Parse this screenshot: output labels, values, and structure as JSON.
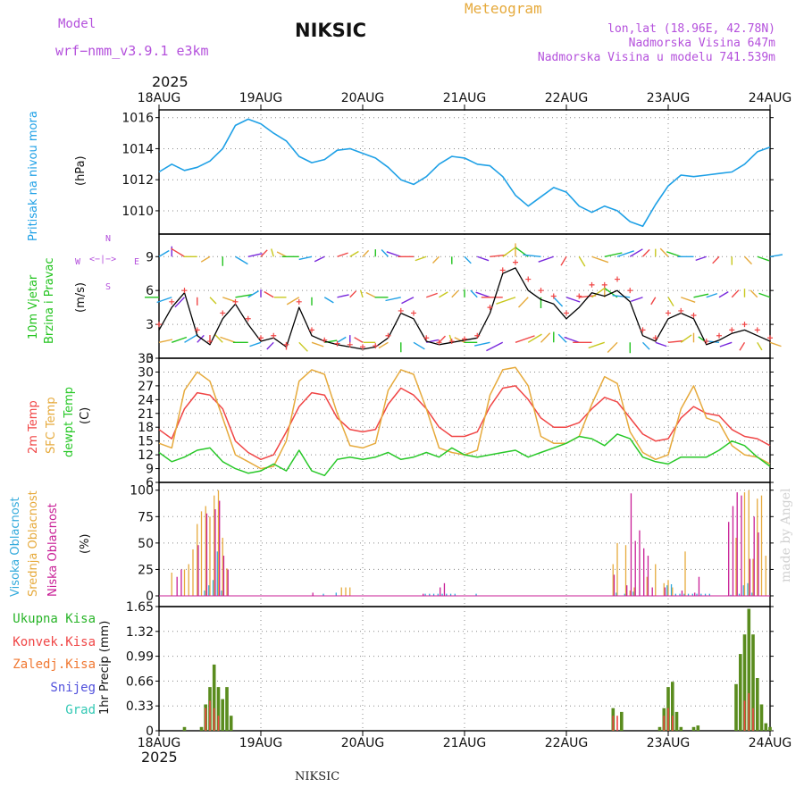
{
  "header": {
    "model_label": "Model",
    "model_name": "wrf−nmm_v3.9.1  e3km",
    "station": "NIKSIC",
    "meteogram": "Meteogram",
    "lonlat": "lon,lat (18.96E, 42.78N)",
    "elevation": "Nadmorska Visina 647m",
    "model_elevation": "Nadmorska Visina u modelu 741.539m",
    "year_top": "2025",
    "year_bottom": "2025",
    "footer_station": "NIKSIC",
    "credit": "made by Angel"
  },
  "colors": {
    "pressure": "#1ea0e6",
    "wind": "#22c31e",
    "temp2m": "#f04646",
    "sfc": "#e6aa3c",
    "dew": "#28c828",
    "cloud_high": "#32aadc",
    "cloud_mid": "#e6aa3c",
    "cloud_low": "#c81e96",
    "precip_total": "#5a8c1e",
    "precip_conv": "#f04646",
    "purple_text": "#b450dc",
    "title_orange": "#e6aa3c"
  },
  "chart_data": [
    {
      "type": "line",
      "name": "pressure",
      "title": "Pritisak na nivou mora",
      "ylabel": "(hPa)",
      "x_categories": [
        "18AUG",
        "19AUG",
        "20AUG",
        "21AUG",
        "22AUG",
        "23AUG",
        "24AUG"
      ],
      "ylim": [
        1008.5,
        1016.5
      ],
      "yticks": [
        1010,
        1012,
        1014,
        1016
      ],
      "x": [
        0,
        3,
        6,
        9,
        12,
        15,
        18,
        21,
        24,
        27,
        30,
        33,
        36,
        39,
        42,
        45,
        48,
        51,
        54,
        57,
        60,
        63,
        66,
        69,
        72,
        75,
        78,
        81,
        84,
        87,
        90,
        93,
        96,
        99,
        102,
        105,
        108,
        111,
        114,
        117,
        120,
        123,
        126,
        129,
        132,
        135,
        138,
        141,
        144
      ],
      "values": [
        1012.5,
        1013.0,
        1012.6,
        1012.8,
        1013.2,
        1014.0,
        1015.5,
        1015.9,
        1015.6,
        1015.0,
        1014.5,
        1013.5,
        1013.1,
        1013.3,
        1013.9,
        1014.0,
        1013.7,
        1013.4,
        1012.8,
        1012.0,
        1011.7,
        1012.2,
        1013.0,
        1013.5,
        1013.4,
        1013.0,
        1012.9,
        1012.2,
        1011.0,
        1010.3,
        1010.9,
        1011.5,
        1011.2,
        1010.3,
        1009.9,
        1010.3,
        1010.0,
        1009.3,
        1009.0,
        1010.4,
        1011.6,
        1012.3,
        1012.2,
        1012.3,
        1012.4,
        1012.5,
        1013.0,
        1013.8,
        1014.1
      ]
    },
    {
      "type": "line",
      "name": "wind",
      "title": "10m Vjetar Brzina i Pravac",
      "ylabel": "(m/s)",
      "ylim": [
        0,
        11
      ],
      "yticks": [
        0,
        3,
        6,
        9
      ],
      "compass": {
        "north": "N",
        "west": "W",
        "east": "E",
        "south": "S"
      },
      "x": [
        0,
        3,
        6,
        9,
        12,
        15,
        18,
        21,
        24,
        27,
        30,
        33,
        36,
        39,
        42,
        45,
        48,
        51,
        54,
        57,
        60,
        63,
        66,
        69,
        72,
        75,
        78,
        81,
        84,
        87,
        90,
        93,
        96,
        99,
        102,
        105,
        108,
        111,
        114,
        117,
        120,
        123,
        126,
        129,
        132,
        135,
        138,
        141,
        144
      ],
      "speed": [
        2.5,
        4.5,
        5.8,
        2.0,
        1.2,
        3.5,
        4.8,
        3.0,
        1.5,
        1.8,
        1.0,
        4.5,
        2.0,
        1.5,
        1.2,
        1.0,
        0.8,
        1.0,
        1.8,
        4.0,
        3.5,
        1.5,
        1.2,
        1.4,
        1.6,
        1.8,
        4.0,
        7.5,
        8.0,
        6.0,
        5.2,
        4.8,
        3.5,
        4.5,
        5.8,
        5.5,
        6.0,
        5.0,
        2.0,
        1.5,
        3.5,
        4.0,
        3.5,
        1.2,
        1.6,
        2.2,
        2.5,
        2.0,
        1.5
      ],
      "gust": [
        3.0,
        5.0,
        6.0,
        2.5,
        1.5,
        4.0,
        5.0,
        3.5,
        1.8,
        2.0,
        1.2,
        5.0,
        2.5,
        1.6,
        1.3,
        1.2,
        1.0,
        1.1,
        2.0,
        4.2,
        4.0,
        1.8,
        1.4,
        1.5,
        1.7,
        2.0,
        4.5,
        7.8,
        8.5,
        7.0,
        6.0,
        5.5,
        4.0,
        5.5,
        6.5,
        6.5,
        7.0,
        6.0,
        2.5,
        1.8,
        4.0,
        4.2,
        3.8,
        1.5,
        2.0,
        2.5,
        3.0,
        2.5,
        1.8
      ],
      "direction_deg": [
        20,
        30,
        45,
        60,
        90,
        120,
        150,
        180,
        210,
        240,
        270,
        300,
        330,
        15,
        45,
        90,
        135,
        180,
        225,
        270,
        315,
        20,
        60,
        100,
        140,
        180,
        200,
        220,
        30,
        45,
        60,
        90,
        120,
        150,
        180,
        210,
        240,
        270,
        300,
        330,
        10,
        50,
        90,
        130,
        170,
        210,
        250,
        290,
        330
      ]
    },
    {
      "type": "line",
      "name": "temperature",
      "title_lines": [
        "2m Temp",
        "SFC Temp",
        "dewpt Temp"
      ],
      "ylabel": "(C)",
      "ylim": [
        6,
        33
      ],
      "yticks": [
        6,
        9,
        12,
        15,
        18,
        21,
        24,
        27,
        30,
        33
      ],
      "x": [
        0,
        3,
        6,
        9,
        12,
        15,
        18,
        21,
        24,
        27,
        30,
        33,
        36,
        39,
        42,
        45,
        48,
        51,
        54,
        57,
        60,
        63,
        66,
        69,
        72,
        75,
        78,
        81,
        84,
        87,
        90,
        93,
        96,
        99,
        102,
        105,
        108,
        111,
        114,
        117,
        120,
        123,
        126,
        129,
        132,
        135,
        138,
        141,
        144
      ],
      "series": [
        {
          "name": "2m Temp",
          "values": [
            17.5,
            15.5,
            22.0,
            25.5,
            25.0,
            22.0,
            15.0,
            12.5,
            11.0,
            12.0,
            17.0,
            22.5,
            25.5,
            25.0,
            20.0,
            17.5,
            17.0,
            17.5,
            23.0,
            26.5,
            25.0,
            22.0,
            18.0,
            16.0,
            16.0,
            17.0,
            22.5,
            26.5,
            27.0,
            24.0,
            20.0,
            18.0,
            18.0,
            19.0,
            22.0,
            24.5,
            23.5,
            20.0,
            16.5,
            15.0,
            15.5,
            20.0,
            22.5,
            21.0,
            20.5,
            17.5,
            16.0,
            15.5,
            14.0
          ]
        },
        {
          "name": "SFC Temp",
          "values": [
            14.5,
            13.5,
            26.0,
            30.0,
            28.0,
            20.0,
            12.0,
            10.5,
            9.0,
            9.5,
            15.0,
            28.0,
            30.5,
            29.5,
            21.0,
            14.0,
            13.5,
            14.5,
            26.0,
            30.5,
            29.5,
            22.0,
            13.5,
            12.5,
            12.0,
            13.0,
            25.0,
            30.5,
            31.0,
            27.0,
            16.0,
            14.5,
            14.5,
            16.0,
            23.0,
            29.0,
            27.5,
            17.0,
            12.5,
            11.0,
            12.0,
            22.0,
            27.0,
            20.0,
            19.0,
            14.0,
            12.0,
            11.5,
            10.0
          ]
        },
        {
          "name": "dewpt Temp",
          "values": [
            12.5,
            10.5,
            11.5,
            13.0,
            13.5,
            10.5,
            9.0,
            8.0,
            8.5,
            10.0,
            8.5,
            13.0,
            8.5,
            7.5,
            11.0,
            11.5,
            11.0,
            11.5,
            12.5,
            11.0,
            11.5,
            12.5,
            11.5,
            13.5,
            12.0,
            11.5,
            12.0,
            12.5,
            13.0,
            11.5,
            12.5,
            13.5,
            14.5,
            16.0,
            15.5,
            14.0,
            16.5,
            15.5,
            11.5,
            10.5,
            10.0,
            11.5,
            11.5,
            11.5,
            13.0,
            15.0,
            14.0,
            11.5,
            9.5
          ]
        }
      ]
    },
    {
      "type": "bar",
      "name": "clouds",
      "title_lines": [
        "Visoka Oblacnost",
        "Srednja Oblacnost",
        "Niska Oblacnost"
      ],
      "ylabel": "(%)",
      "ylim": [
        0,
        100
      ],
      "yticks": [
        0,
        25,
        50,
        75,
        100
      ],
      "series": [
        {
          "name": "Visoka Oblacnost",
          "x": [
            11,
            12,
            13,
            14,
            15,
            39,
            42,
            63,
            64,
            65,
            66,
            67,
            68,
            69,
            70,
            75,
            108,
            110,
            112,
            120,
            121,
            122,
            123,
            124,
            125,
            126,
            127,
            128,
            129,
            130,
            135,
            137,
            138,
            139,
            140
          ],
          "values": [
            5,
            10,
            15,
            42,
            5,
            2,
            3,
            2,
            2,
            2,
            2,
            2,
            2,
            2,
            2,
            2,
            3,
            2,
            4,
            10,
            11,
            2,
            2,
            2,
            2,
            2,
            2,
            2,
            2,
            2,
            1,
            2,
            10,
            12,
            3
          ]
        },
        {
          "name": "Srednja Oblacnost",
          "x": [
            3,
            6,
            7,
            8,
            9,
            10,
            11,
            12,
            13,
            14,
            15,
            16,
            43,
            44,
            45,
            107,
            108,
            110,
            111,
            112,
            115,
            117,
            119,
            120,
            121,
            124,
            136,
            138,
            139,
            140,
            141,
            142,
            143
          ],
          "values": [
            22,
            25,
            30,
            44,
            68,
            80,
            85,
            75,
            95,
            100,
            55,
            26,
            8,
            8,
            8,
            30,
            50,
            48,
            5,
            8,
            18,
            30,
            12,
            15,
            8,
            42,
            55,
            98,
            100,
            35,
            92,
            95,
            38
          ]
        },
        {
          "name": "Niska Oblacnost",
          "x": [
            4,
            5,
            9,
            11,
            13,
            14,
            15,
            16,
            36,
            62,
            66,
            67,
            107,
            110,
            111,
            112,
            113,
            114,
            115,
            116,
            119,
            123,
            126,
            127,
            134,
            135,
            136,
            137,
            139,
            140,
            141
          ],
          "values": [
            18,
            25,
            48,
            78,
            82,
            90,
            38,
            25,
            3,
            2,
            8,
            12,
            20,
            10,
            97,
            52,
            62,
            45,
            38,
            8,
            8,
            5,
            3,
            18,
            70,
            85,
            98,
            95,
            35,
            75,
            60
          ]
        }
      ]
    },
    {
      "type": "bar",
      "name": "precipitation",
      "title_lines": [
        "Ukupna Kisa",
        "Konvek.Kisa",
        "Zaledj.Kisa",
        "Snijeg",
        "Grad"
      ],
      "ylabel": "1hr Precip (mm)",
      "ylim": [
        0,
        1.65
      ],
      "yticks": [
        0,
        0.33,
        0.66,
        0.99,
        1.32,
        1.65
      ],
      "ytick_labels": [
        "0",
        "0.33",
        "0.66",
        "0.99",
        "1.32",
        "1.65"
      ],
      "series": [
        {
          "name": "Ukupna Kisa",
          "x": [
            6,
            10,
            11,
            12,
            13,
            14,
            15,
            16,
            17,
            107,
            109,
            118,
            119,
            120,
            121,
            122,
            123,
            126,
            127,
            136,
            137,
            138,
            139,
            140,
            141,
            142,
            143,
            144
          ],
          "values": [
            0.05,
            0.05,
            0.35,
            0.58,
            0.88,
            0.58,
            0.42,
            0.58,
            0.2,
            0.3,
            0.25,
            0.05,
            0.3,
            0.58,
            0.65,
            0.25,
            0.05,
            0.05,
            0.07,
            0.62,
            1.02,
            1.28,
            1.62,
            1.28,
            0.7,
            0.35,
            0.1,
            0.05
          ]
        },
        {
          "name": "Konvek.Kisa",
          "x": [
            11,
            12,
            13,
            14,
            107,
            108,
            119,
            120,
            121,
            138,
            139,
            140
          ],
          "values": [
            0.3,
            0.4,
            0.3,
            0.2,
            0.2,
            0.2,
            0.2,
            0.3,
            0.2,
            0.4,
            0.5,
            0.3
          ]
        }
      ],
      "x_categories_bottom": [
        "18AUG",
        "19AUG",
        "20AUG",
        "21AUG",
        "22AUG",
        "23AUG",
        "24AUG"
      ]
    }
  ]
}
